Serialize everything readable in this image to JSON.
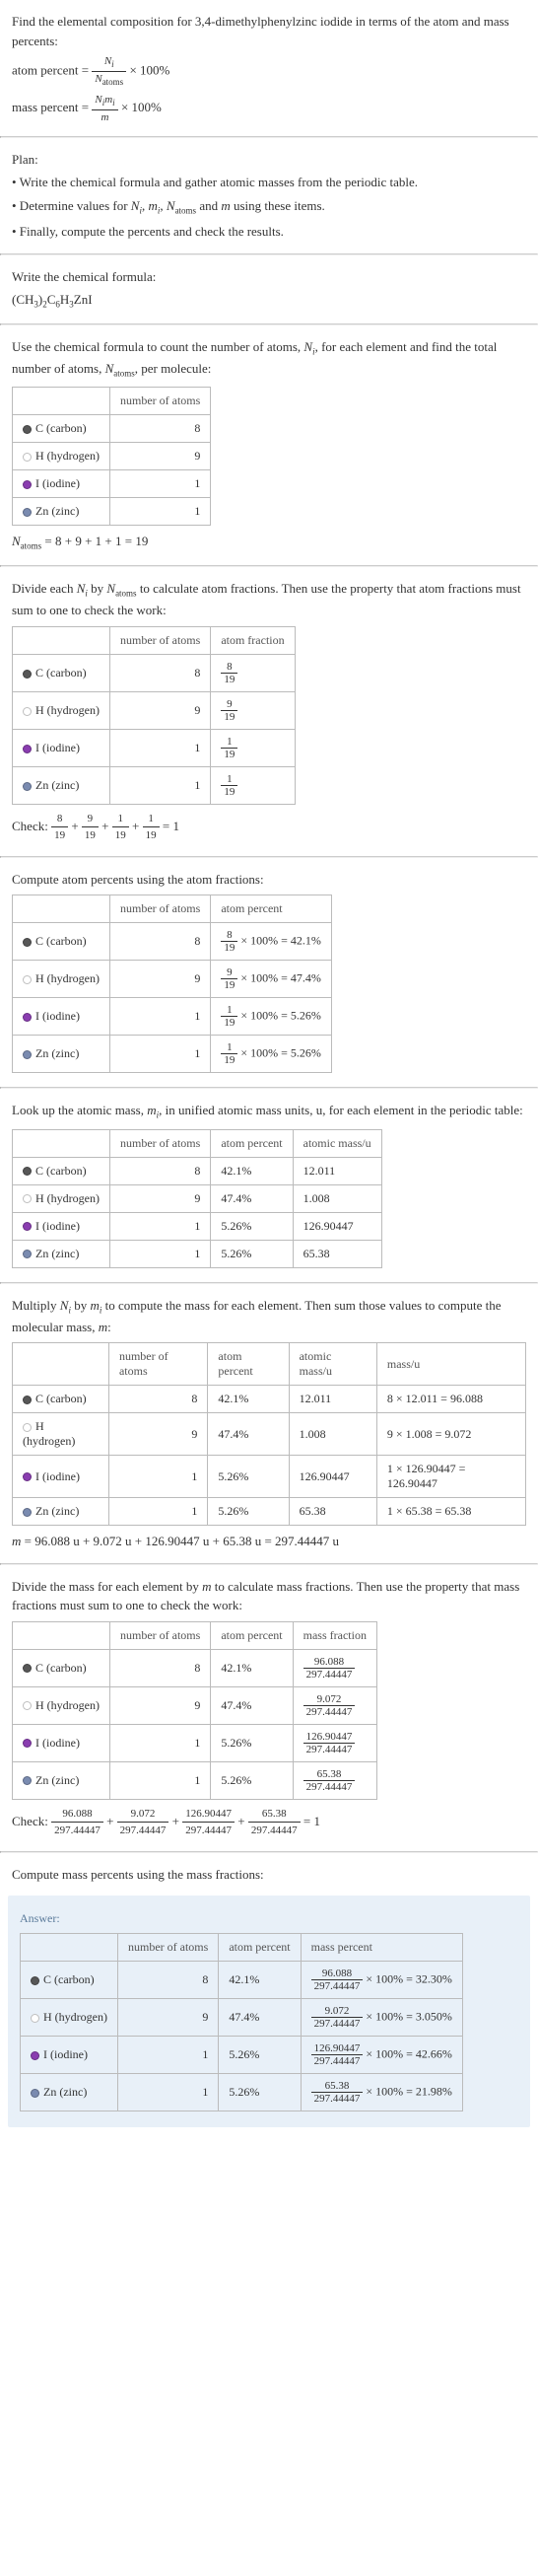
{
  "intro": {
    "line1": "Find the elemental composition for 3,4-dimethylphenylzinc iodide in terms of the atom and mass percents:",
    "atom_percent_label": "atom percent",
    "mass_percent_label": "mass percent",
    "times100": " × 100%"
  },
  "plan": {
    "heading": "Plan:",
    "b1": "• Write the chemical formula and gather atomic masses from the periodic table.",
    "b2_pre": "• Determine values for ",
    "b2_post": " using these items.",
    "b3": "• Finally, compute the percents and check the results."
  },
  "write_formula": {
    "heading": "Write the chemical formula:",
    "formula_plain": "(CH3)2C6H3ZnI"
  },
  "count": {
    "para_pre": "Use the chemical formula to count the number of atoms, ",
    "para_mid": ", for each element and find the total number of atoms, ",
    "para_post": ", per molecule:",
    "col_num": "number of atoms",
    "sum_pre": " = 8 + 9 + 1 + 1 = 19"
  },
  "elements": {
    "c": {
      "name": "C (carbon)",
      "color": "#575757"
    },
    "h": {
      "name": "H (hydrogen)",
      "color": "#ffffff"
    },
    "i": {
      "name": "I (iodine)",
      "color": "#8a3db0"
    },
    "zn": {
      "name": "Zn (zinc)",
      "color": "#7a8bb0"
    }
  },
  "natoms": {
    "c": "8",
    "h": "9",
    "i": "1",
    "zn": "1"
  },
  "atomfrac": {
    "para_pre": "Divide each ",
    "para_mid": " by ",
    "para_post": " to calculate atom fractions. Then use the property that atom fractions must sum to one to check the work:",
    "col_frac": "atom fraction",
    "check_pre": "Check: ",
    "check_eq": " = 1",
    "c_num": "8",
    "c_den": "19",
    "h_num": "9",
    "h_den": "19",
    "i_num": "1",
    "i_den": "19",
    "zn_num": "1",
    "zn_den": "19"
  },
  "atompercent": {
    "para": "Compute atom percents using the atom fractions:",
    "col_pct": "atom percent",
    "c_pct": " × 100% = 42.1%",
    "h_pct": " × 100% = 47.4%",
    "i_pct": " × 100% = 5.26%",
    "zn_pct": " × 100% = 5.26%"
  },
  "atommass": {
    "para_pre": "Look up the atomic mass, ",
    "para_post": ", in unified atomic mass units, u, for each element in the periodic table:",
    "col_mass": "atomic mass/u",
    "c_pct": "42.1%",
    "h_pct": "47.4%",
    "i_pct": "5.26%",
    "zn_pct": "5.26%",
    "c_m": "12.011",
    "h_m": "1.008",
    "i_m": "126.90447",
    "zn_m": "65.38"
  },
  "molmass": {
    "para_pre": "Multiply ",
    "para_mid": " by ",
    "para_post": " to compute the mass for each element. Then sum those values to compute the molecular mass, ",
    "para_end": ":",
    "col_massu": "mass/u",
    "c_calc": "8 × 12.011 = 96.088",
    "h_calc": "9 × 1.008 = 9.072",
    "i_calc": "1 × 126.90447 = 126.90447",
    "zn_calc": "1 × 65.38 = 65.38",
    "sum": " = 96.088 u + 9.072 u + 126.90447 u + 65.38 u = 297.44447 u"
  },
  "massfrac": {
    "para_pre": "Divide the mass for each element by ",
    "para_post": " to calculate mass fractions. Then use the property that mass fractions must sum to one to check the work:",
    "col_massfrac": "mass fraction",
    "c_num": "96.088",
    "h_num": "9.072",
    "i_num": "126.90447",
    "zn_num": "65.38",
    "den": "297.44447",
    "check_eq": " = 1"
  },
  "masspct": {
    "para": "Compute mass percents using the mass fractions:"
  },
  "answer": {
    "label": "Answer:",
    "col_masspct": "mass percent",
    "c_num": "96.088",
    "h_num": "9.072",
    "i_num": "126.90447",
    "zn_num": "65.38",
    "den": "297.44447",
    "c_res": " × 100% = 32.30%",
    "h_res": " × 100% = 3.050%",
    "i_res": " × 100% = 42.66%",
    "zn_res": " × 100% = 21.98%"
  }
}
